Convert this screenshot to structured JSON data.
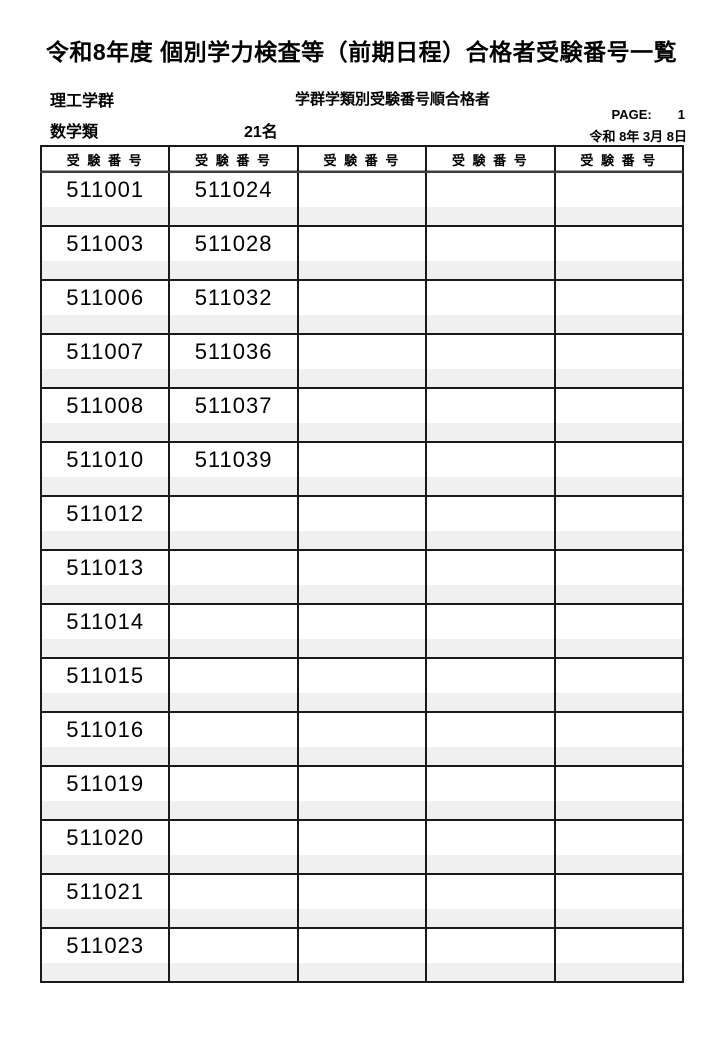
{
  "title": "令和8年度 個別学力検査等（前期日程）合格者受験番号一覧",
  "header": {
    "school_group": "理工学群",
    "list_type": "学群学類別受験番号順合格者",
    "page_label": "PAGE:",
    "page_number": "1",
    "department": "数学類",
    "count": "21名",
    "date": "令和 8年 3月 8日"
  },
  "table": {
    "column_header": "受 験 番 号",
    "num_columns": 5,
    "num_rows": 15,
    "columns": [
      [
        "511001",
        "511003",
        "511006",
        "511007",
        "511008",
        "511010",
        "511012",
        "511013",
        "511014",
        "511015",
        "511016",
        "511019",
        "511020",
        "511021",
        "511023"
      ],
      [
        "511024",
        "511028",
        "511032",
        "511036",
        "511037",
        "511039"
      ],
      [],
      [],
      []
    ]
  },
  "colors": {
    "text": "#000000",
    "line": "#1a1a1a",
    "line_mid": "#3d3d3d",
    "line_light": "#a0a0a0",
    "stripe_bg": "#f0f0f0"
  }
}
